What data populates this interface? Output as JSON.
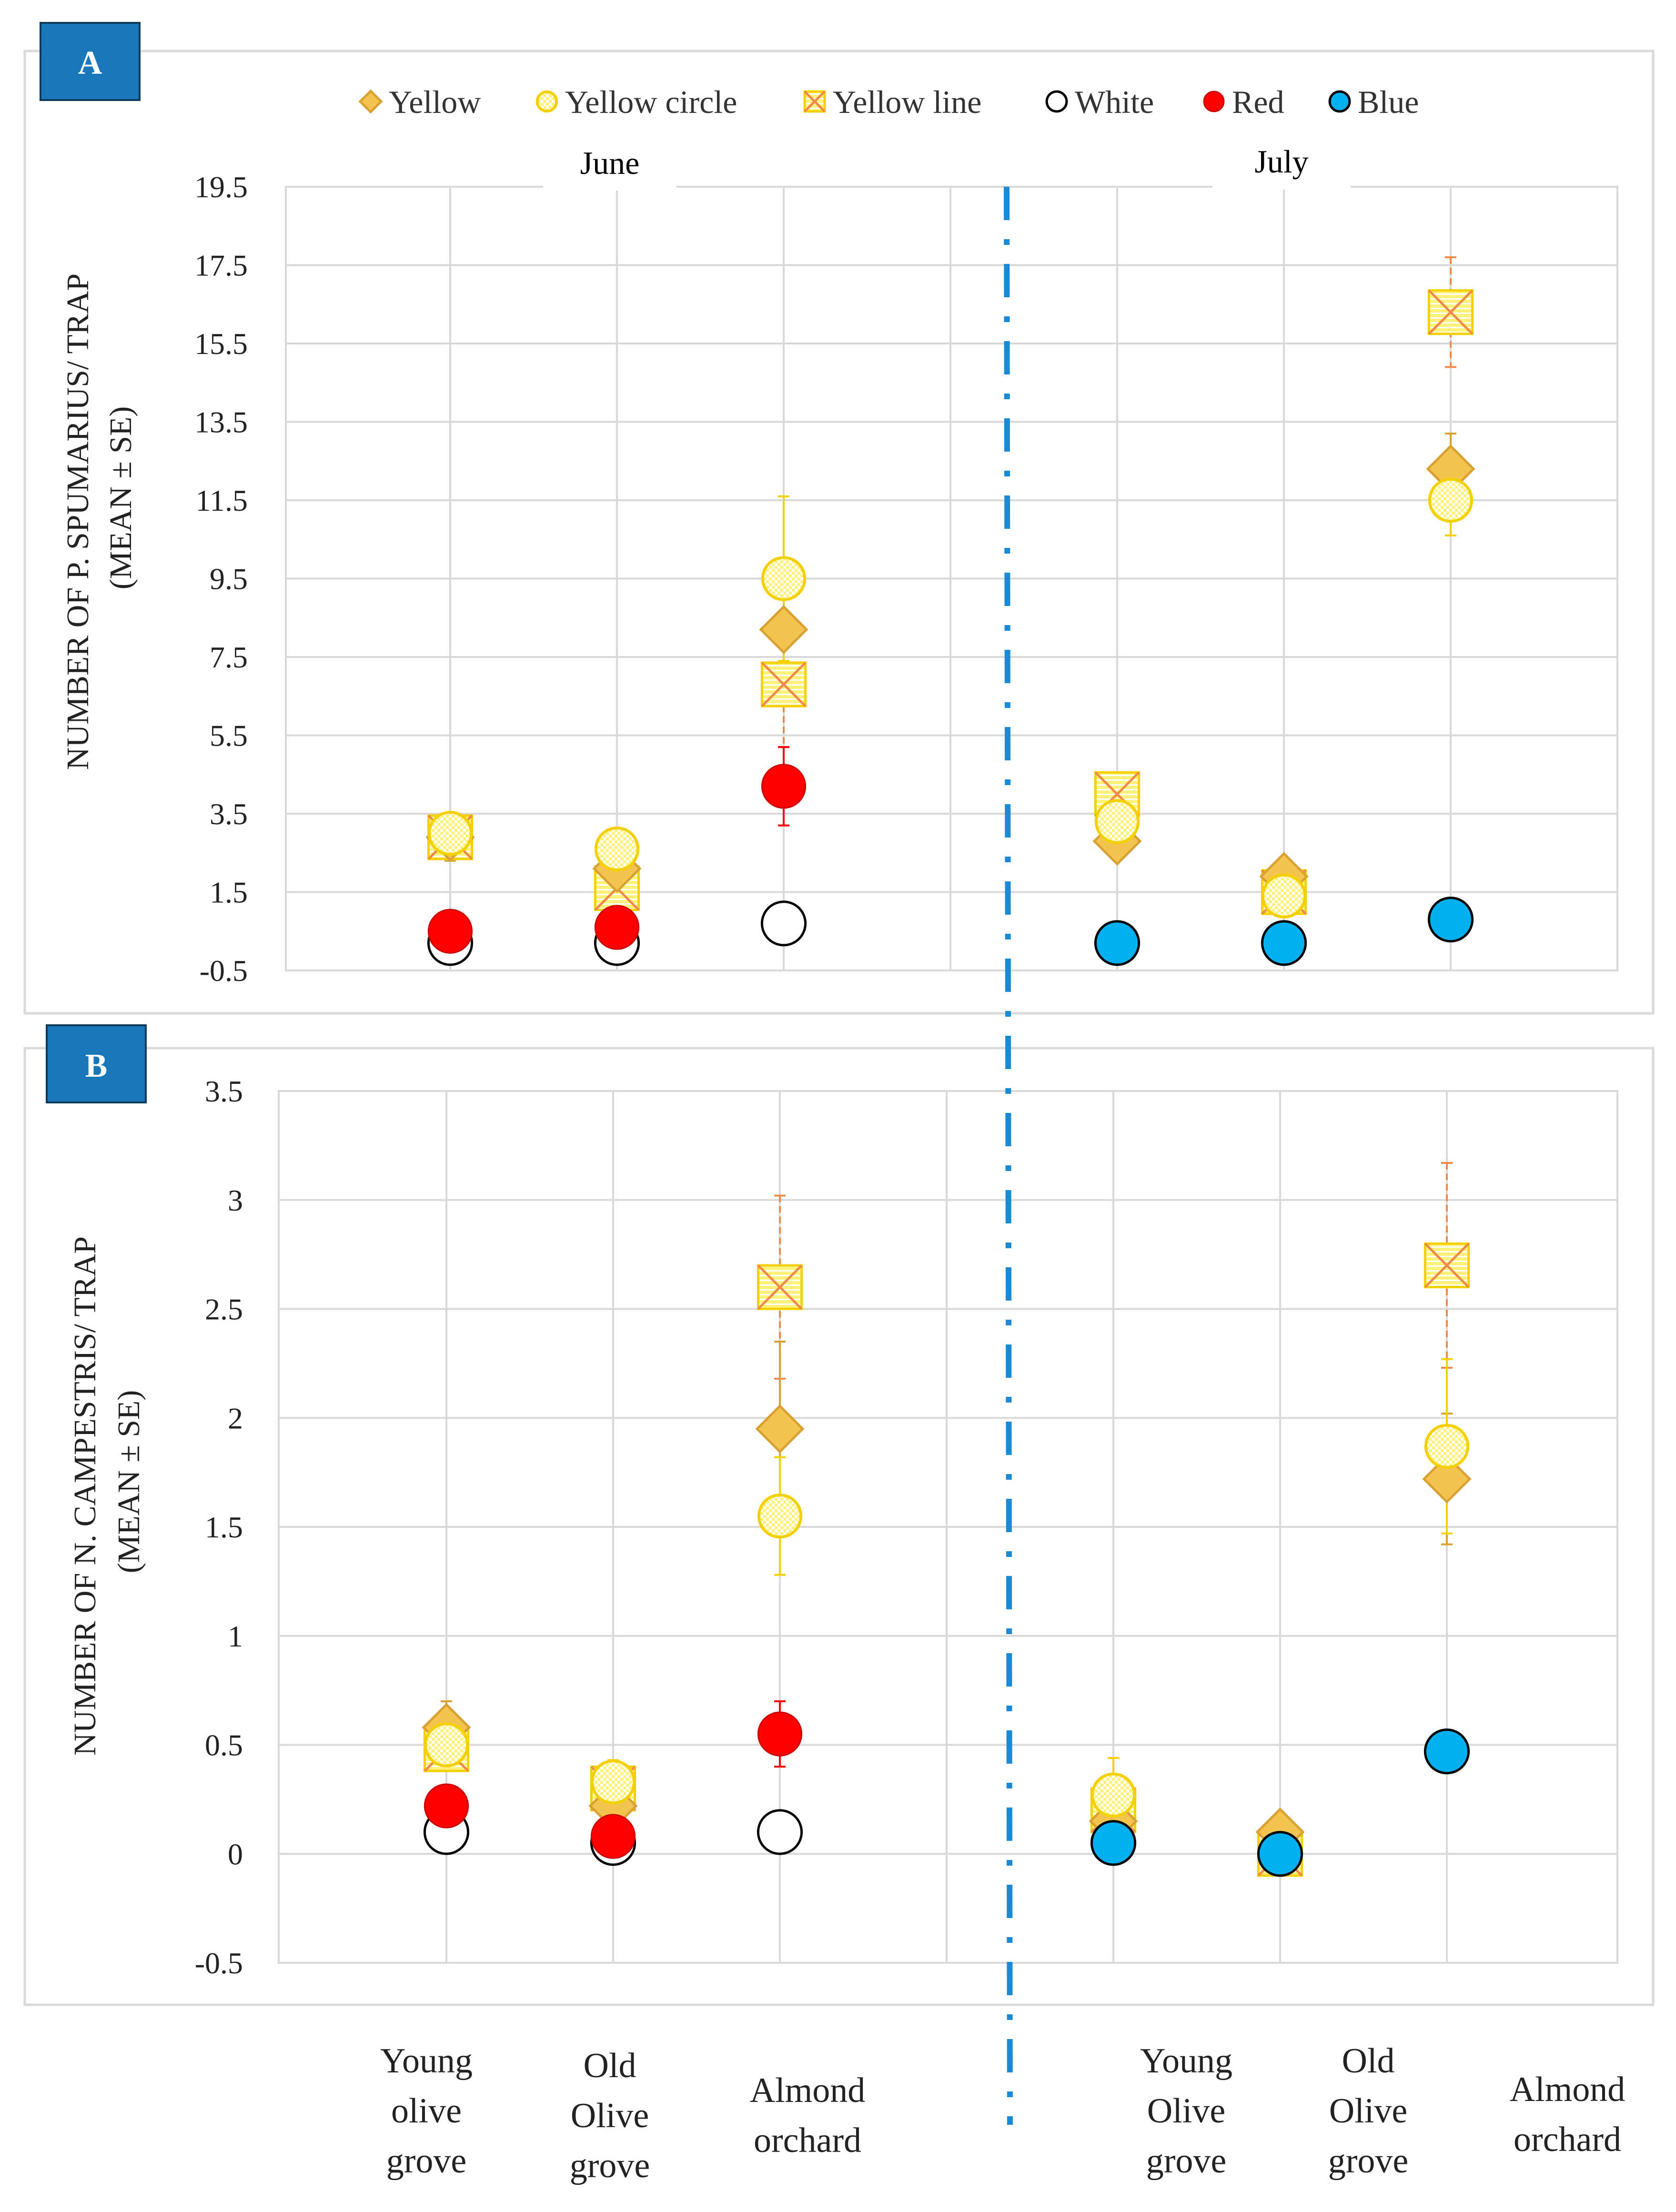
{
  "chart_data": [
    {
      "type": "scatter",
      "panel_label": "A",
      "ylabel_line1": "NUMBER OF P. SPUMARIUS/ TRAP",
      "ylabel_line2": "(MEAN ± SE)",
      "ylim": [
        -0.5,
        19.5
      ],
      "yticks": [
        "19.5",
        "17.5",
        "15.5",
        "13.5",
        "11.5",
        "9.5",
        "7.5",
        "5.5",
        "3.5",
        "1.5",
        "-0.5"
      ],
      "ytick_values": [
        19.5,
        17.5,
        15.5,
        13.5,
        11.5,
        9.5,
        7.5,
        5.5,
        3.5,
        1.5,
        -0.5
      ],
      "grid": true,
      "month_labels": [
        "June",
        "July"
      ],
      "series": [
        {
          "name": "Yellow",
          "marker": "diamond",
          "points": [
            {
              "x": 1,
              "y": 2.9,
              "se": 0.6
            },
            {
              "x": 2,
              "y": 2.1,
              "se": 0.4
            },
            {
              "x": 3,
              "y": 8.2,
              "se": 1.0
            },
            {
              "x": 5,
              "y": 2.8,
              "se": 0.4
            },
            {
              "x": 6,
              "y": 1.9,
              "se": 0.3
            },
            {
              "x": 7,
              "y": 12.3,
              "se": 0.9
            }
          ]
        },
        {
          "name": "Yellow circle",
          "marker": "circle-check",
          "points": [
            {
              "x": 1,
              "y": 3.0,
              "se": 0.5
            },
            {
              "x": 2,
              "y": 2.6,
              "se": 0.4
            },
            {
              "x": 3,
              "y": 9.5,
              "se": 2.1
            },
            {
              "x": 5,
              "y": 3.3,
              "se": 0.5
            },
            {
              "x": 6,
              "y": 1.4,
              "se": 0.3
            },
            {
              "x": 7,
              "y": 11.5,
              "se": 0.9
            }
          ]
        },
        {
          "name": "Yellow line",
          "marker": "square-x",
          "points": [
            {
              "x": 1,
              "y": 2.9,
              "se": 0.5
            },
            {
              "x": 2,
              "y": 1.6,
              "se": 0.4
            },
            {
              "x": 3,
              "y": 6.8,
              "se": 1.6
            },
            {
              "x": 5,
              "y": 4.0,
              "se": 0.5
            },
            {
              "x": 6,
              "y": 1.5,
              "se": 0.3
            },
            {
              "x": 7,
              "y": 16.3,
              "se": 1.4
            }
          ]
        },
        {
          "name": "White",
          "marker": "circle-open",
          "points": [
            {
              "x": 1,
              "y": 0.2,
              "se": 0.1
            },
            {
              "x": 2,
              "y": 0.2,
              "se": 0.1
            },
            {
              "x": 3,
              "y": 0.7,
              "se": 0.2
            }
          ]
        },
        {
          "name": "Red",
          "marker": "circle-red",
          "points": [
            {
              "x": 1,
              "y": 0.5,
              "se": 0.2
            },
            {
              "x": 2,
              "y": 0.6,
              "se": 0.2
            },
            {
              "x": 3,
              "y": 4.2,
              "se": 1.0
            }
          ]
        },
        {
          "name": "Blue",
          "marker": "circle-blue",
          "points": [
            {
              "x": 5,
              "y": 0.2,
              "se": 0.1
            },
            {
              "x": 6,
              "y": 0.2,
              "se": 0.1
            },
            {
              "x": 7,
              "y": 0.8,
              "se": 0.2
            }
          ]
        }
      ]
    },
    {
      "type": "scatter",
      "panel_label": "B",
      "ylabel_line1": "NUMBER OF N. CAMPESTRIS/ TRAP",
      "ylabel_line2": "(MEAN ± SE)",
      "ylim": [
        -0.5,
        3.5
      ],
      "yticks": [
        "3.5",
        "3",
        "2.5",
        "2",
        "1.5",
        "1",
        "0.5",
        "0",
        "-0.5"
      ],
      "ytick_values": [
        3.5,
        3,
        2.5,
        2,
        1.5,
        1,
        0.5,
        0,
        -0.5
      ],
      "grid": true,
      "categories_june": [
        "Young olive grove",
        "Old Olive grove",
        "Almond orchard"
      ],
      "categories_july": [
        "Young Olive grove",
        "Old Olive grove",
        "Almond orchard"
      ],
      "series": [
        {
          "name": "Yellow",
          "marker": "diamond",
          "points": [
            {
              "x": 1,
              "y": 0.58,
              "se": 0.12
            },
            {
              "x": 2,
              "y": 0.22,
              "se": 0.08
            },
            {
              "x": 3,
              "y": 1.95,
              "se": 0.4
            },
            {
              "x": 5,
              "y": 0.15,
              "se": 0.1
            },
            {
              "x": 6,
              "y": 0.1,
              "se": 0.05
            },
            {
              "x": 7,
              "y": 1.72,
              "se": 0.3
            }
          ]
        },
        {
          "name": "Yellow circle",
          "marker": "circle-check",
          "points": [
            {
              "x": 1,
              "y": 0.5,
              "se": 0.1
            },
            {
              "x": 2,
              "y": 0.33,
              "se": 0.1
            },
            {
              "x": 3,
              "y": 1.55,
              "se": 0.27
            },
            {
              "x": 5,
              "y": 0.27,
              "se": 0.17
            },
            {
              "x": 6,
              "y": 0.0,
              "se": 0.05
            },
            {
              "x": 7,
              "y": 1.87,
              "se": 0.4
            }
          ]
        },
        {
          "name": "Yellow line",
          "marker": "square-x",
          "points": [
            {
              "x": 1,
              "y": 0.48,
              "se": 0.1
            },
            {
              "x": 2,
              "y": 0.3,
              "se": 0.1
            },
            {
              "x": 3,
              "y": 2.6,
              "se": 0.42
            },
            {
              "x": 5,
              "y": 0.2,
              "se": 0.1
            },
            {
              "x": 6,
              "y": 0.0,
              "se": 0.05
            },
            {
              "x": 7,
              "y": 2.7,
              "se": 0.47
            }
          ]
        },
        {
          "name": "White",
          "marker": "circle-open",
          "points": [
            {
              "x": 1,
              "y": 0.1,
              "se": 0.05
            },
            {
              "x": 2,
              "y": 0.05,
              "se": 0.03
            },
            {
              "x": 3,
              "y": 0.1,
              "se": 0.05
            }
          ]
        },
        {
          "name": "Red",
          "marker": "circle-red",
          "points": [
            {
              "x": 1,
              "y": 0.22,
              "se": 0.07
            },
            {
              "x": 2,
              "y": 0.08,
              "se": 0.04
            },
            {
              "x": 3,
              "y": 0.55,
              "se": 0.15
            }
          ]
        },
        {
          "name": "Blue",
          "marker": "circle-blue",
          "points": [
            {
              "x": 5,
              "y": 0.05,
              "se": 0.04
            },
            {
              "x": 6,
              "y": 0.0,
              "se": 0.03
            },
            {
              "x": 7,
              "y": 0.47,
              "se": 0.08
            }
          ]
        }
      ]
    }
  ],
  "legend": [
    {
      "label": "Yellow",
      "marker": "diamond"
    },
    {
      "label": "Yellow circle",
      "marker": "circle-check"
    },
    {
      "label": "Yellow line",
      "marker": "square-x"
    },
    {
      "label": "White",
      "marker": "circle-open"
    },
    {
      "label": "Red",
      "marker": "circle-red"
    },
    {
      "label": "Blue",
      "marker": "circle-blue"
    }
  ],
  "x_labels": [
    {
      "lines": [
        "Young",
        "olive",
        "grove"
      ]
    },
    {
      "lines": [
        "Old",
        "Olive",
        "grove"
      ]
    },
    {
      "lines": [
        "Almond",
        "orchard"
      ]
    },
    {
      "lines": [
        "Young",
        "Olive",
        "grove"
      ]
    },
    {
      "lines": [
        "Old",
        "Olive",
        "grove"
      ]
    },
    {
      "lines": [
        "Almond",
        "orchard"
      ]
    }
  ],
  "colors": {
    "yellow_fill": "#f3c54f",
    "yellow_stroke": "#d9a034",
    "yellow_circle_fill": "#fff176",
    "yellow_circle_stroke": "#f5d000",
    "yellow_line_fill": "#fff27a",
    "yellow_line_stroke": "#ef8a4a",
    "red": "#ff0000",
    "blue": "#00b0f0",
    "divider": "#1a8ad4",
    "grid": "#d9d9d9",
    "panel_label": "#1877b8"
  }
}
